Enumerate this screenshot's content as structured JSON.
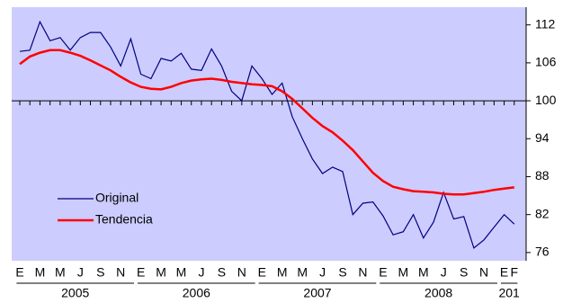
{
  "chart_data": {
    "type": "line",
    "categories": [
      "E",
      null,
      "M",
      null,
      "M",
      null,
      "J",
      null,
      "S",
      null,
      "N",
      null,
      "E",
      null,
      "M",
      null,
      "M",
      null,
      "J",
      null,
      "S",
      null,
      "N",
      null,
      "E",
      null,
      "M",
      null,
      "M",
      null,
      "J",
      null,
      "S",
      null,
      "N",
      null,
      "E",
      null,
      "M",
      null,
      "M",
      null,
      "J",
      null,
      "S",
      null,
      "N",
      null,
      "E",
      "F"
    ],
    "year_labels": [
      "2005",
      "2006",
      "2007",
      "2008",
      "201"
    ],
    "series": [
      {
        "name": "Original",
        "color": "#000080",
        "values": [
          107.8,
          108.0,
          112.5,
          109.5,
          110.0,
          108.0,
          110.0,
          110.8,
          110.8,
          108.5,
          105.5,
          109.8,
          104.2,
          103.5,
          106.7,
          106.3,
          107.5,
          105.0,
          104.8,
          108.2,
          105.5,
          101.5,
          100.0,
          105.5,
          103.5,
          101.0,
          102.8,
          97.5,
          94.0,
          90.8,
          88.5,
          89.5,
          88.8,
          82.0,
          83.8,
          84.0,
          81.8,
          78.8,
          79.3,
          82.0,
          78.3,
          80.8,
          85.5,
          81.3,
          81.7,
          76.7,
          78.0,
          80.0,
          82.0,
          80.5
        ]
      },
      {
        "name": "Tendencia",
        "color": "#ff0000",
        "values": [
          105.8,
          107.0,
          107.6,
          108.0,
          108.0,
          107.6,
          107.1,
          106.4,
          105.6,
          104.8,
          103.8,
          102.9,
          102.2,
          101.9,
          101.8,
          102.2,
          102.8,
          103.2,
          103.4,
          103.5,
          103.3,
          103.0,
          102.8,
          102.6,
          102.5,
          102.3,
          101.5,
          100.3,
          98.8,
          97.3,
          96.0,
          95.0,
          93.7,
          92.2,
          90.4,
          88.6,
          87.3,
          86.4,
          86.0,
          85.7,
          85.6,
          85.5,
          85.3,
          85.2,
          85.2,
          85.4,
          85.6,
          85.9,
          86.1,
          86.3
        ]
      }
    ],
    "ylim": [
      74.7,
      114.8
    ],
    "yticks": [
      76,
      82,
      88,
      94,
      100,
      106,
      112
    ],
    "x_axis_at": 100,
    "background": "#ccccff"
  }
}
